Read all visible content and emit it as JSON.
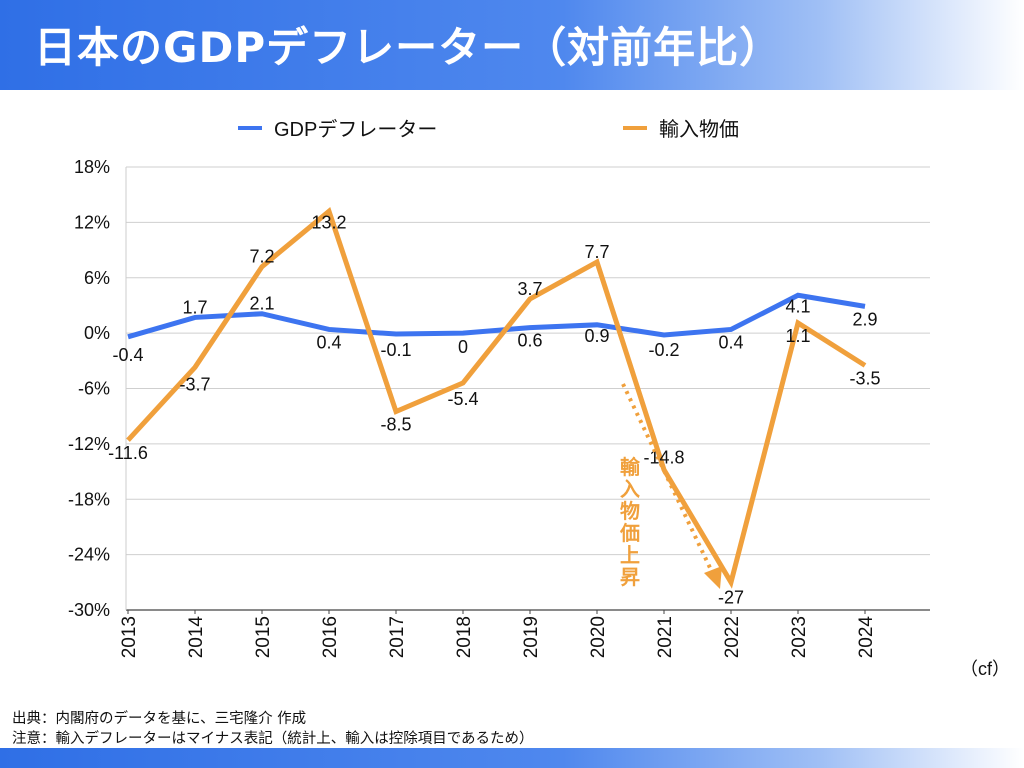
{
  "title": "日本のGDPデフレーター（対前年比）",
  "notes": {
    "source": "出典：内閣府のデータを基に、三宅隆介 作成",
    "remark": "注意：輸入デフレーターはマイナス表記（統計上、輸入は控除項目であるため）"
  },
  "unit_label": "（cf）",
  "annotation": "輸入物価上昇",
  "colors": {
    "gdp": "#3d74f0",
    "import": "#f0a03c",
    "header": "#2f6fe6",
    "grid": "#cfcfcf"
  },
  "chart_data": {
    "type": "line",
    "x": [
      "2013",
      "2014",
      "2015",
      "2016",
      "2017",
      "2018",
      "2019",
      "2020",
      "2021",
      "2022",
      "2023",
      "2024"
    ],
    "series": [
      {
        "name": "GDPデフレーター",
        "values": [
          -0.4,
          1.7,
          2.1,
          0.4,
          -0.1,
          0,
          0.6,
          0.9,
          -0.2,
          0.4,
          4.1,
          2.9
        ]
      },
      {
        "name": "輸入物価",
        "values": [
          -11.6,
          -3.7,
          7.2,
          13.2,
          -8.5,
          -5.4,
          3.7,
          7.7,
          -14.8,
          -27,
          1.1,
          -3.5
        ]
      }
    ],
    "yticks": [
      "18%",
      "12%",
      "6%",
      "0%",
      "-6%",
      "-12%",
      "-18%",
      "-24%",
      "-30%"
    ],
    "ylim": [
      -30,
      18
    ],
    "grid": true,
    "legend": "top-center"
  }
}
